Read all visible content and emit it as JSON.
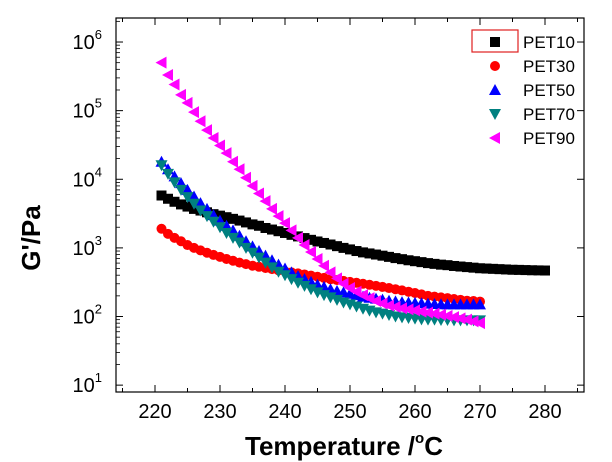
{
  "chart_data": {
    "type": "scatter",
    "title": "",
    "xlabel": "Temperature /",
    "xlabel_degree": "o",
    "xlabel_unit": "C",
    "ylabel": "G'/Pa",
    "xlim": [
      214,
      286
    ],
    "ylim_log10": [
      0.9,
      6.35
    ],
    "yscale": "log",
    "xticks": [
      220,
      230,
      240,
      250,
      260,
      270,
      280
    ],
    "yticks": [
      {
        "base": "10",
        "exp": "1",
        "value": 10
      },
      {
        "base": "10",
        "exp": "2",
        "value": 100
      },
      {
        "base": "10",
        "exp": "3",
        "value": 1000
      },
      {
        "base": "10",
        "exp": "4",
        "value": 10000
      },
      {
        "base": "10",
        "exp": "5",
        "value": 100000
      },
      {
        "base": "10",
        "exp": "6",
        "value": 1000000
      }
    ],
    "legend_position": "top-right",
    "series": [
      {
        "name": "PET10",
        "marker": "square",
        "color": "#000000",
        "x": [
          221,
          222,
          223,
          224,
          225,
          226,
          227,
          228,
          229,
          230,
          231,
          232,
          233,
          234,
          235,
          236,
          237,
          238,
          239,
          240,
          241,
          242,
          243,
          244,
          245,
          246,
          247,
          248,
          249,
          250,
          251,
          252,
          253,
          254,
          255,
          256,
          257,
          258,
          259,
          260,
          261,
          262,
          263,
          264,
          265,
          266,
          267,
          268,
          269,
          270,
          271,
          272,
          273,
          274,
          275,
          276,
          277,
          278,
          279,
          280
        ],
        "y": [
          5800,
          5200,
          4700,
          4300,
          4000,
          3700,
          3500,
          3300,
          3100,
          2950,
          2800,
          2650,
          2500,
          2350,
          2200,
          2100,
          1950,
          1850,
          1750,
          1650,
          1550,
          1470,
          1390,
          1310,
          1240,
          1180,
          1120,
          1060,
          1000,
          950,
          900,
          860,
          830,
          800,
          770,
          740,
          710,
          685,
          660,
          640,
          620,
          600,
          585,
          570,
          560,
          545,
          535,
          525,
          515,
          505,
          500,
          495,
          490,
          485,
          480,
          478,
          475,
          472,
          470,
          468
        ]
      },
      {
        "name": "PET30",
        "marker": "circle",
        "color": "#ff0000",
        "x": [
          221,
          222,
          223,
          224,
          225,
          226,
          227,
          228,
          229,
          230,
          231,
          232,
          233,
          234,
          235,
          236,
          237,
          238,
          239,
          240,
          241,
          242,
          243,
          244,
          245,
          246,
          247,
          248,
          249,
          250,
          251,
          252,
          253,
          254,
          255,
          256,
          257,
          258,
          259,
          260,
          261,
          262,
          263,
          264,
          265,
          266,
          267,
          268,
          269,
          270
        ],
        "y": [
          1900,
          1600,
          1400,
          1250,
          1100,
          1000,
          920,
          850,
          790,
          740,
          690,
          650,
          610,
          580,
          550,
          530,
          510,
          490,
          470,
          455,
          440,
          425,
          410,
          395,
          380,
          365,
          350,
          340,
          330,
          320,
          310,
          300,
          290,
          280,
          270,
          260,
          250,
          240,
          230,
          220,
          210,
          200,
          195,
          190,
          185,
          180,
          175,
          170,
          168,
          165
        ]
      },
      {
        "name": "PET50",
        "marker": "triangle-up",
        "color": "#0000ff",
        "x": [
          221,
          222,
          223,
          224,
          225,
          226,
          227,
          228,
          229,
          230,
          231,
          232,
          233,
          234,
          235,
          236,
          237,
          238,
          239,
          240,
          241,
          242,
          243,
          244,
          245,
          246,
          247,
          248,
          249,
          250,
          251,
          252,
          253,
          254,
          255,
          256,
          257,
          258,
          259,
          260,
          261,
          262,
          263,
          264,
          265,
          266,
          267,
          268,
          269,
          270
        ],
        "y": [
          18000,
          14000,
          11000,
          8800,
          7000,
          5600,
          4500,
          3700,
          3000,
          2500,
          2100,
          1800,
          1500,
          1250,
          1050,
          900,
          770,
          660,
          570,
          500,
          440,
          390,
          350,
          320,
          290,
          270,
          250,
          235,
          225,
          215,
          205,
          195,
          188,
          182,
          176,
          170,
          166,
          162,
          160,
          158,
          156,
          154,
          152,
          151,
          150,
          150,
          150,
          150,
          150,
          150
        ]
      },
      {
        "name": "PET70",
        "marker": "triangle-down",
        "color": "#008080",
        "x": [
          221,
          222,
          223,
          224,
          225,
          226,
          227,
          228,
          229,
          230,
          231,
          232,
          233,
          234,
          235,
          236,
          237,
          238,
          239,
          240,
          241,
          242,
          243,
          244,
          245,
          246,
          247,
          248,
          249,
          250,
          251,
          252,
          253,
          254,
          255,
          256,
          257,
          258,
          259,
          260,
          261,
          262,
          263,
          264,
          265,
          266,
          267,
          268,
          269,
          270
        ],
        "y": [
          16000,
          12000,
          9000,
          7000,
          5500,
          4400,
          3500,
          2900,
          2400,
          2000,
          1650,
          1400,
          1200,
          1000,
          850,
          720,
          610,
          520,
          450,
          400,
          350,
          310,
          280,
          250,
          225,
          205,
          190,
          175,
          160,
          150,
          140,
          130,
          122,
          115,
          110,
          105,
          100,
          97,
          95,
          93,
          91,
          90,
          90,
          89,
          89,
          88,
          88,
          88,
          88,
          88
        ]
      },
      {
        "name": "PET90",
        "marker": "triangle-left",
        "color": "#ff00ff",
        "x": [
          221,
          222,
          223,
          224,
          225,
          226,
          227,
          228,
          229,
          230,
          231,
          232,
          233,
          234,
          235,
          236,
          237,
          238,
          239,
          240,
          241,
          242,
          243,
          244,
          245,
          246,
          247,
          248,
          249,
          250,
          251,
          252,
          253,
          254,
          255,
          256,
          257,
          258,
          259,
          260,
          261,
          262,
          263,
          264,
          265,
          266,
          267,
          268,
          269,
          270
        ],
        "y": [
          500000,
          330000,
          240000,
          170000,
          130000,
          95000,
          70000,
          52000,
          40000,
          31000,
          24000,
          18000,
          14000,
          10500,
          8000,
          6200,
          4800,
          3700,
          2900,
          2300,
          1800,
          1400,
          1100,
          870,
          690,
          550,
          440,
          360,
          300,
          260,
          230,
          205,
          185,
          168,
          155,
          145,
          138,
          132,
          127,
          123,
          118,
          114,
          110,
          106,
          102,
          98,
          94,
          90,
          85,
          80
        ]
      }
    ]
  }
}
